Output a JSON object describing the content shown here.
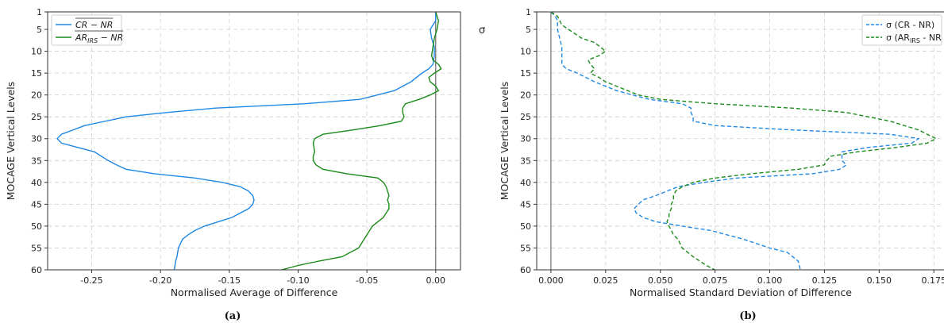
{
  "chart_data": [
    {
      "type": "line",
      "panel_label": "(a)",
      "xlabel": "Normalised Average of Difference",
      "ylabel": "MOCAGE Vertical Levels",
      "xlim": [
        -0.282,
        0.018
      ],
      "ylim": [
        1,
        60
      ],
      "y_inverted": true,
      "x_ticks": [
        -0.25,
        -0.2,
        -0.15,
        -0.1,
        -0.05,
        0.0
      ],
      "x_tick_labels": [
        "-0.25",
        "-0.20",
        "-0.15",
        "-0.10",
        "-0.05",
        "0.00"
      ],
      "y_ticks": [
        1,
        5,
        10,
        15,
        20,
        25,
        30,
        35,
        40,
        45,
        50,
        55,
        60
      ],
      "y_tick_labels": [
        "1",
        "5",
        "10",
        "15",
        "20",
        "25",
        "30",
        "35",
        "40",
        "45",
        "50",
        "55",
        "60"
      ],
      "grid": true,
      "legend": "top-left",
      "stray_text": "σ",
      "vline_x": 0.0,
      "series": [
        {
          "name": "CR − NR",
          "legend_text": "CR − NR",
          "overline": true,
          "color": "#1e88e5",
          "dash": "solid",
          "points": [
            [
              0.0,
              1
            ],
            [
              0.0,
              3
            ],
            [
              -0.002,
              4
            ],
            [
              -0.004,
              5
            ],
            [
              -0.003,
              7
            ],
            [
              -0.001,
              9
            ],
            [
              -0.001,
              11
            ],
            [
              -0.002,
              13
            ],
            [
              -0.005,
              14
            ],
            [
              -0.01,
              15
            ],
            [
              -0.018,
              17
            ],
            [
              -0.03,
              19
            ],
            [
              -0.055,
              21
            ],
            [
              -0.095,
              22
            ],
            [
              -0.16,
              23
            ],
            [
              -0.195,
              24
            ],
            [
              -0.225,
              25
            ],
            [
              -0.255,
              27
            ],
            [
              -0.272,
              29
            ],
            [
              -0.275,
              30
            ],
            [
              -0.272,
              31
            ],
            [
              -0.26,
              32
            ],
            [
              -0.248,
              33
            ],
            [
              -0.243,
              34
            ],
            [
              -0.238,
              35
            ],
            [
              -0.232,
              36
            ],
            [
              -0.225,
              37
            ],
            [
              -0.205,
              38
            ],
            [
              -0.175,
              39
            ],
            [
              -0.155,
              40
            ],
            [
              -0.142,
              41
            ],
            [
              -0.136,
              42
            ],
            [
              -0.133,
              43
            ],
            [
              -0.132,
              44
            ],
            [
              -0.133,
              45
            ],
            [
              -0.136,
              46
            ],
            [
              -0.142,
              47
            ],
            [
              -0.148,
              48
            ],
            [
              -0.158,
              49
            ],
            [
              -0.168,
              50
            ],
            [
              -0.175,
              51
            ],
            [
              -0.18,
              52
            ],
            [
              -0.184,
              53
            ],
            [
              -0.187,
              55
            ],
            [
              -0.188,
              57
            ],
            [
              -0.189,
              58
            ],
            [
              -0.19,
              60
            ]
          ]
        },
        {
          "name": "AR_IRS − NR",
          "legend_text": "AR",
          "legend_sub": "IRS",
          "legend_tail": " − NR",
          "overline": true,
          "color": "#1a8a1a",
          "dash": "solid",
          "points": [
            [
              0.0,
              1
            ],
            [
              0.001,
              2
            ],
            [
              0.002,
              3
            ],
            [
              0.001,
              5
            ],
            [
              -0.001,
              7
            ],
            [
              -0.002,
              9
            ],
            [
              -0.003,
              11
            ],
            [
              -0.002,
              12
            ],
            [
              0.002,
              13
            ],
            [
              0.004,
              14
            ],
            [
              -0.001,
              15
            ],
            [
              -0.005,
              16
            ],
            [
              -0.004,
              17
            ],
            [
              0.0,
              18
            ],
            [
              0.002,
              19
            ],
            [
              -0.004,
              20
            ],
            [
              -0.012,
              21
            ],
            [
              -0.022,
              22
            ],
            [
              -0.024,
              23
            ],
            [
              -0.024,
              24
            ],
            [
              -0.023,
              25
            ],
            [
              -0.025,
              26
            ],
            [
              -0.04,
              27
            ],
            [
              -0.06,
              28
            ],
            [
              -0.082,
              29
            ],
            [
              -0.088,
              30
            ],
            [
              -0.089,
              31
            ],
            [
              -0.088,
              33
            ],
            [
              -0.089,
              34
            ],
            [
              -0.089,
              35
            ],
            [
              -0.087,
              36
            ],
            [
              -0.082,
              37
            ],
            [
              -0.065,
              38
            ],
            [
              -0.042,
              39
            ],
            [
              -0.038,
              40
            ],
            [
              -0.036,
              41
            ],
            [
              -0.035,
              42
            ],
            [
              -0.034,
              43
            ],
            [
              -0.035,
              44
            ],
            [
              -0.034,
              45
            ],
            [
              -0.034,
              46
            ],
            [
              -0.036,
              47
            ],
            [
              -0.038,
              48
            ],
            [
              -0.042,
              49
            ],
            [
              -0.046,
              50
            ],
            [
              -0.048,
              51
            ],
            [
              -0.052,
              53
            ],
            [
              -0.056,
              55
            ],
            [
              -0.068,
              57
            ],
            [
              -0.085,
              58
            ],
            [
              -0.1,
              59
            ],
            [
              -0.112,
              60
            ]
          ]
        }
      ]
    },
    {
      "type": "line",
      "panel_label": "(b)",
      "xlabel": "Normalised Standard Deviation of Difference",
      "ylabel": "MOCAGE Vertical Levels",
      "xlim": [
        -0.0065,
        0.18
      ],
      "ylim": [
        1,
        60
      ],
      "y_inverted": true,
      "x_ticks": [
        0.0,
        0.025,
        0.05,
        0.075,
        0.1,
        0.125,
        0.15,
        0.175
      ],
      "x_tick_labels": [
        "0.000",
        "0.025",
        "0.050",
        "0.075",
        "0.100",
        "0.125",
        "0.150",
        "0.175"
      ],
      "y_ticks": [
        1,
        5,
        10,
        15,
        20,
        25,
        30,
        35,
        40,
        45,
        50,
        55,
        60
      ],
      "y_tick_labels": [
        "1",
        "5",
        "10",
        "15",
        "20",
        "25",
        "30",
        "35",
        "40",
        "45",
        "50",
        "55",
        "60"
      ],
      "grid": true,
      "legend": "top-right",
      "vline_x": 0.0,
      "series": [
        {
          "name": "σ (CR - NR)",
          "legend_text": "σ (CR - NR)",
          "color": "#1e88e5",
          "dash": "dashed",
          "points": [
            [
              0.0,
              1
            ],
            [
              0.002,
              2
            ],
            [
              0.003,
              3
            ],
            [
              0.003,
              5
            ],
            [
              0.004,
              7
            ],
            [
              0.005,
              9
            ],
            [
              0.005,
              11
            ],
            [
              0.005,
              13
            ],
            [
              0.007,
              14
            ],
            [
              0.012,
              15
            ],
            [
              0.02,
              17
            ],
            [
              0.03,
              19
            ],
            [
              0.045,
              21
            ],
            [
              0.06,
              22
            ],
            [
              0.064,
              23
            ],
            [
              0.064,
              24
            ],
            [
              0.065,
              25
            ],
            [
              0.065,
              26
            ],
            [
              0.075,
              27
            ],
            [
              0.11,
              28
            ],
            [
              0.155,
              29
            ],
            [
              0.168,
              30
            ],
            [
              0.165,
              31
            ],
            [
              0.145,
              32
            ],
            [
              0.133,
              33
            ],
            [
              0.133,
              35
            ],
            [
              0.135,
              36
            ],
            [
              0.132,
              37
            ],
            [
              0.12,
              38
            ],
            [
              0.085,
              39
            ],
            [
              0.07,
              40
            ],
            [
              0.058,
              41
            ],
            [
              0.048,
              43
            ],
            [
              0.042,
              44
            ],
            [
              0.038,
              46
            ],
            [
              0.039,
              47
            ],
            [
              0.042,
              48
            ],
            [
              0.048,
              49
            ],
            [
              0.06,
              50
            ],
            [
              0.073,
              51
            ],
            [
              0.088,
              53
            ],
            [
              0.1,
              55
            ],
            [
              0.108,
              56
            ],
            [
              0.113,
              58
            ],
            [
              0.114,
              60
            ]
          ]
        },
        {
          "name": "σ (AR_IRS - NR",
          "legend_text": "σ (AR",
          "legend_sub": "IRS",
          "legend_tail": " - NR",
          "color": "#1a8a1a",
          "dash": "dashed",
          "points": [
            [
              0.0,
              1
            ],
            [
              0.003,
              2
            ],
            [
              0.004,
              3
            ],
            [
              0.005,
              4
            ],
            [
              0.008,
              5
            ],
            [
              0.014,
              7
            ],
            [
              0.02,
              8
            ],
            [
              0.025,
              10
            ],
            [
              0.022,
              11
            ],
            [
              0.017,
              12
            ],
            [
              0.018,
              13
            ],
            [
              0.02,
              14
            ],
            [
              0.018,
              15
            ],
            [
              0.022,
              16
            ],
            [
              0.025,
              17
            ],
            [
              0.03,
              18
            ],
            [
              0.035,
              19
            ],
            [
              0.04,
              20
            ],
            [
              0.05,
              21
            ],
            [
              0.075,
              22
            ],
            [
              0.11,
              23
            ],
            [
              0.135,
              24
            ],
            [
              0.155,
              26
            ],
            [
              0.168,
              28
            ],
            [
              0.176,
              30
            ],
            [
              0.172,
              31
            ],
            [
              0.158,
              32
            ],
            [
              0.14,
              33
            ],
            [
              0.128,
              34
            ],
            [
              0.126,
              35
            ],
            [
              0.125,
              36
            ],
            [
              0.113,
              37
            ],
            [
              0.092,
              38
            ],
            [
              0.075,
              39
            ],
            [
              0.065,
              40
            ],
            [
              0.06,
              41
            ],
            [
              0.057,
              42
            ],
            [
              0.056,
              43
            ],
            [
              0.056,
              44
            ],
            [
              0.055,
              45
            ],
            [
              0.055,
              46
            ],
            [
              0.054,
              47
            ],
            [
              0.054,
              48
            ],
            [
              0.053,
              49
            ],
            [
              0.054,
              50
            ],
            [
              0.055,
              51
            ],
            [
              0.056,
              52
            ],
            [
              0.058,
              53
            ],
            [
              0.06,
              55
            ],
            [
              0.065,
              57
            ],
            [
              0.071,
              59
            ],
            [
              0.075,
              60
            ]
          ]
        }
      ]
    }
  ]
}
